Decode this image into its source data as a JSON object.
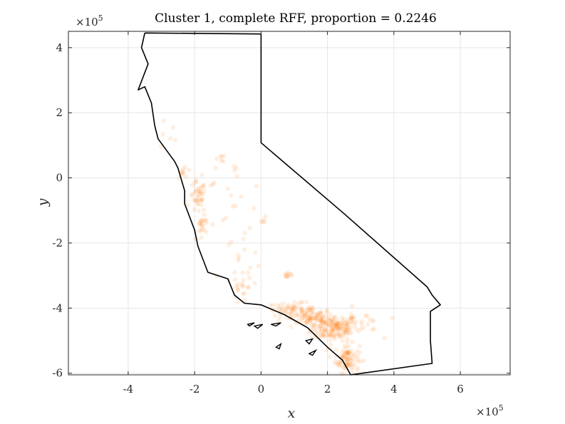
{
  "chart_data": {
    "type": "scatter",
    "title": "Cluster 1, complete RFF, proportion = 0.2246",
    "xlabel": "x",
    "ylabel": "y",
    "x_exponent_label": "×10",
    "x_exponent_power": "5",
    "y_exponent_label": "×10",
    "y_exponent_power": "5",
    "xlim": [
      -5.8,
      7.5
    ],
    "ylim": [
      -6.05,
      4.5
    ],
    "x_ticks": [
      -4,
      -2,
      0,
      2,
      4,
      6
    ],
    "y_ticks": [
      -6,
      -4,
      -2,
      0,
      2,
      4
    ],
    "x_tick_labels": [
      "-4",
      "-2",
      "0",
      "2",
      "4",
      "6"
    ],
    "y_tick_labels": [
      "-6",
      "-4",
      "-2",
      "0",
      "2",
      "4"
    ],
    "grid": true,
    "colors": {
      "points": "#ff7f0e",
      "outline": "#000000",
      "grid": "#e6e6e6"
    },
    "outline": [
      [
        -3.5,
        4.45
      ],
      [
        0.0,
        4.42
      ],
      [
        0.0,
        1.08
      ],
      [
        2.5,
        -1.1
      ],
      [
        5.0,
        -3.35
      ],
      [
        5.15,
        -3.6
      ],
      [
        5.4,
        -3.9
      ],
      [
        5.1,
        -4.1
      ],
      [
        5.1,
        -5.0
      ],
      [
        5.15,
        -5.7
      ],
      [
        2.7,
        -6.05
      ],
      [
        2.45,
        -5.6
      ],
      [
        2.0,
        -5.2
      ],
      [
        1.4,
        -4.6
      ],
      [
        0.7,
        -4.2
      ],
      [
        0.0,
        -3.9
      ],
      [
        -0.5,
        -3.85
      ],
      [
        -0.8,
        -3.6
      ],
      [
        -1.0,
        -3.1
      ],
      [
        -1.6,
        -2.9
      ],
      [
        -1.9,
        -2.1
      ],
      [
        -2.0,
        -1.6
      ],
      [
        -2.3,
        -0.8
      ],
      [
        -2.3,
        -0.4
      ],
      [
        -2.5,
        0.3
      ],
      [
        -2.6,
        0.5
      ],
      [
        -3.1,
        1.2
      ],
      [
        -3.2,
        1.6
      ],
      [
        -3.3,
        2.3
      ],
      [
        -3.5,
        2.8
      ],
      [
        -3.7,
        2.7
      ],
      [
        -3.4,
        3.5
      ],
      [
        -3.6,
        4.0
      ],
      [
        -3.5,
        4.45
      ]
    ],
    "islands": [
      [
        [
          -0.4,
          -4.5
        ],
        [
          -0.2,
          -4.45
        ],
        [
          -0.35,
          -4.55
        ]
      ],
      [
        [
          -0.2,
          -4.55
        ],
        [
          0.05,
          -4.5
        ],
        [
          -0.1,
          -4.62
        ]
      ],
      [
        [
          0.3,
          -4.5
        ],
        [
          0.6,
          -4.45
        ],
        [
          0.45,
          -4.55
        ]
      ],
      [
        [
          1.35,
          -5.0
        ],
        [
          1.55,
          -4.95
        ],
        [
          1.45,
          -5.1
        ]
      ],
      [
        [
          1.45,
          -5.4
        ],
        [
          1.65,
          -5.3
        ],
        [
          1.55,
          -5.45
        ]
      ],
      [
        [
          0.45,
          -5.2
        ],
        [
          0.6,
          -5.1
        ],
        [
          0.55,
          -5.25
        ]
      ]
    ],
    "clusters": [
      {
        "x": 2.2,
        "y": -4.6,
        "sx": 0.35,
        "sy": 0.2,
        "n": 170
      },
      {
        "x": 2.6,
        "y": -5.55,
        "sx": 0.18,
        "sy": 0.22,
        "n": 90
      },
      {
        "x": 0.9,
        "y": -4.05,
        "sx": 0.35,
        "sy": 0.1,
        "n": 60
      },
      {
        "x": 1.5,
        "y": -4.3,
        "sx": 0.3,
        "sy": 0.15,
        "n": 70
      },
      {
        "x": -1.9,
        "y": -0.6,
        "sx": 0.12,
        "sy": 0.25,
        "n": 40
      },
      {
        "x": -1.75,
        "y": -1.5,
        "sx": 0.1,
        "sy": 0.15,
        "n": 20
      },
      {
        "x": -0.55,
        "y": -3.4,
        "sx": 0.15,
        "sy": 0.25,
        "n": 20
      },
      {
        "x": 0.8,
        "y": -2.95,
        "sx": 0.08,
        "sy": 0.06,
        "n": 10
      },
      {
        "x": -1.2,
        "y": 0.6,
        "sx": 0.06,
        "sy": 0.05,
        "n": 6
      },
      {
        "x": 0.1,
        "y": -1.3,
        "sx": 0.05,
        "sy": 0.05,
        "n": 5
      },
      {
        "x": -2.3,
        "y": 0.2,
        "sx": 0.1,
        "sy": 0.1,
        "n": 10
      },
      {
        "x": -1.0,
        "y": -0.6,
        "sx": 0.6,
        "sy": 0.6,
        "n": 25
      },
      {
        "x": 3.0,
        "y": -4.5,
        "sx": 0.3,
        "sy": 0.25,
        "n": 20
      },
      {
        "x": -2.8,
        "y": 1.3,
        "sx": 0.25,
        "sy": 0.3,
        "n": 6
      },
      {
        "x": -0.5,
        "y": -2.4,
        "sx": 0.25,
        "sy": 0.3,
        "n": 12
      }
    ]
  }
}
